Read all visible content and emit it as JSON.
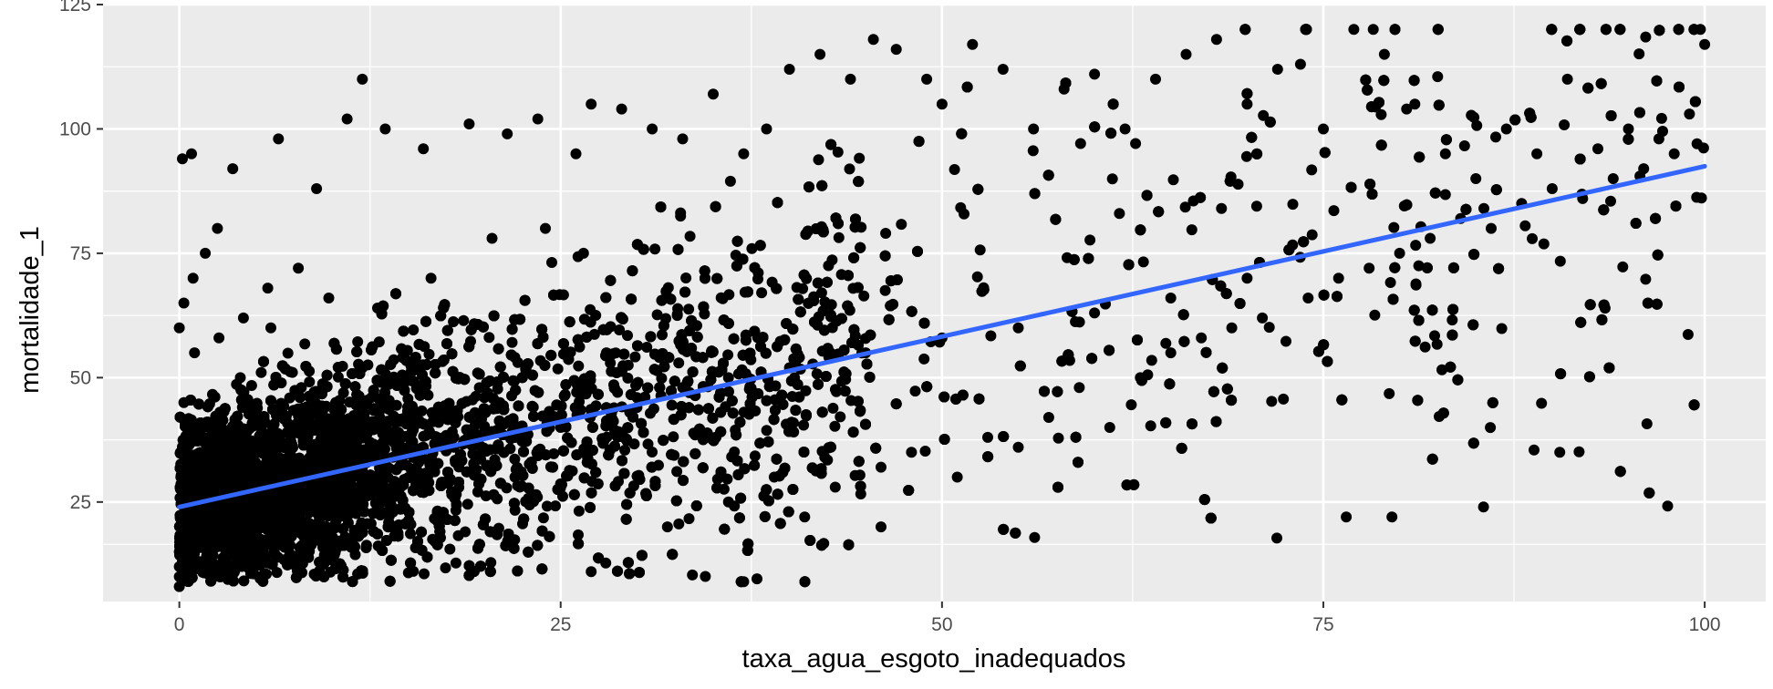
{
  "chart_data": {
    "type": "scatter",
    "title": "",
    "xlabel": "taxa_agua_esgoto_inadequados",
    "ylabel": "mortalidade_1",
    "xlim": [
      -5,
      104
    ],
    "ylim": [
      5,
      125
    ],
    "x_ticks": [
      0,
      25,
      50,
      75,
      100
    ],
    "x_tick_labels": [
      "0",
      "25",
      "50",
      "75",
      "100"
    ],
    "y_ticks": [
      25,
      50,
      75,
      100,
      125
    ],
    "y_tick_labels": [
      "25",
      "50",
      "75",
      "100",
      "125"
    ],
    "grid": true,
    "legend": "none",
    "colors": {
      "panel_background": "#ebebeb",
      "grid_line": "#ffffff",
      "points": "#000000",
      "trend_line": "#3366ff"
    },
    "trend_line": {
      "type": "linear",
      "x": [
        0,
        100
      ],
      "y": [
        24,
        92.5
      ]
    },
    "points": {
      "description_of_distribution": null,
      "x": [
        0.1,
        0.3,
        0.5,
        1.0,
        1.5,
        2.0,
        3.0,
        4.0,
        5.0,
        6.0,
        7.0,
        8.0,
        10.0,
        12.0,
        15.0,
        18.0,
        20.0,
        22.0,
        25.0,
        28.0,
        30.0,
        0.2,
        0.8,
        2.5,
        3.5,
        6.5,
        9.0,
        11.0,
        13.5,
        16.0,
        19.0,
        21.5,
        23.5,
        26.0,
        27.0,
        29.0,
        31.0,
        33.0,
        35.0,
        37.0,
        38.5,
        40.0,
        42.0,
        44.0,
        45.5,
        47.0,
        49.0,
        50.0,
        52.0,
        54.0,
        56.0,
        58.0,
        60.0,
        62.0,
        64.0,
        66.0,
        68.0,
        70.0,
        72.0,
        73.5,
        75.0,
        77.0,
        79.0,
        81.0,
        83.0,
        85.0,
        87.0,
        89.0,
        91.0,
        93.0,
        95.0,
        97.0,
        99.0,
        100.0,
        0.0,
        0.0,
        0.1,
        0.2,
        0.4,
        0.6,
        1.2,
        1.8,
        2.2,
        2.8,
        3.3,
        4.5,
        5.5,
        6.2,
        7.5,
        8.5,
        9.5,
        10.5,
        11.5,
        12.5,
        14.0,
        17.0,
        0.0,
        0.3,
        0.9,
        1.7,
        2.6,
        4.2,
        5.8,
        7.8,
        9.8,
        13.0,
        16.5,
        20.5,
        24.0,
        26.5,
        32.0,
        36.0,
        39.0,
        41.0,
        43.0,
        46.0,
        48.0,
        51.0,
        53.0,
        55.0,
        57.0,
        59.0,
        61.0,
        63.0,
        65.0,
        67.0,
        69.0,
        71.0,
        74.0,
        76.0,
        78.0,
        80.0,
        82.0,
        84.0,
        86.0,
        88.0,
        90.0,
        92.0,
        94.0,
        96.0,
        98.0,
        99.5,
        0.0,
        0.5,
        1.0,
        2.0,
        3.0,
        4.0,
        5.0,
        6.0,
        8.0,
        10.0,
        12.0,
        14.0,
        16.0,
        18.0,
        22.0,
        25.0,
        28.0,
        30.0,
        33.0,
        36.0,
        40.0,
        45.0,
        50.0,
        55.0,
        60.0,
        65.0,
        70.0,
        76.5,
        79.5,
        85.5,
        90.5,
        37.0,
        27.0,
        46.0,
        12.0,
        0.0
      ],
      "y": [
        30,
        45,
        20,
        55,
        35,
        40,
        28,
        50,
        33,
        60,
        25,
        48,
        38,
        52,
        42,
        36,
        46,
        30,
        40,
        55,
        44,
        94,
        95,
        80,
        92,
        98,
        88,
        102,
        100,
        96,
        101,
        99,
        102,
        95,
        105,
        104,
        100,
        98,
        107,
        95,
        100,
        112,
        115,
        110,
        118,
        116,
        110,
        105,
        117,
        112,
        100,
        108,
        111,
        100,
        110,
        115,
        118,
        105,
        112,
        113,
        100,
        120,
        115,
        105,
        95,
        90,
        100,
        95,
        110,
        96,
        100,
        98,
        103,
        117,
        10,
        15,
        12,
        18,
        22,
        14,
        16,
        20,
        24,
        26,
        19,
        21,
        23,
        25,
        27,
        29,
        31,
        33,
        35,
        37,
        39,
        41,
        60,
        65,
        70,
        75,
        58,
        62,
        68,
        72,
        66,
        64,
        70,
        78,
        80,
        75,
        20,
        25,
        30,
        22,
        28,
        32,
        35,
        30,
        38,
        36,
        42,
        48,
        40,
        50,
        55,
        58,
        60,
        62,
        66,
        70,
        72,
        75,
        78,
        82,
        80,
        85,
        88,
        86,
        90,
        92,
        95,
        97,
        12,
        14,
        16,
        18,
        20,
        22,
        24,
        26,
        28,
        30,
        32,
        34,
        36,
        38,
        40,
        42,
        44,
        46,
        48,
        50,
        52,
        55,
        58,
        60,
        63,
        66,
        70,
        22,
        22,
        24,
        35,
        9,
        11,
        20,
        110,
        8
      ]
    }
  }
}
